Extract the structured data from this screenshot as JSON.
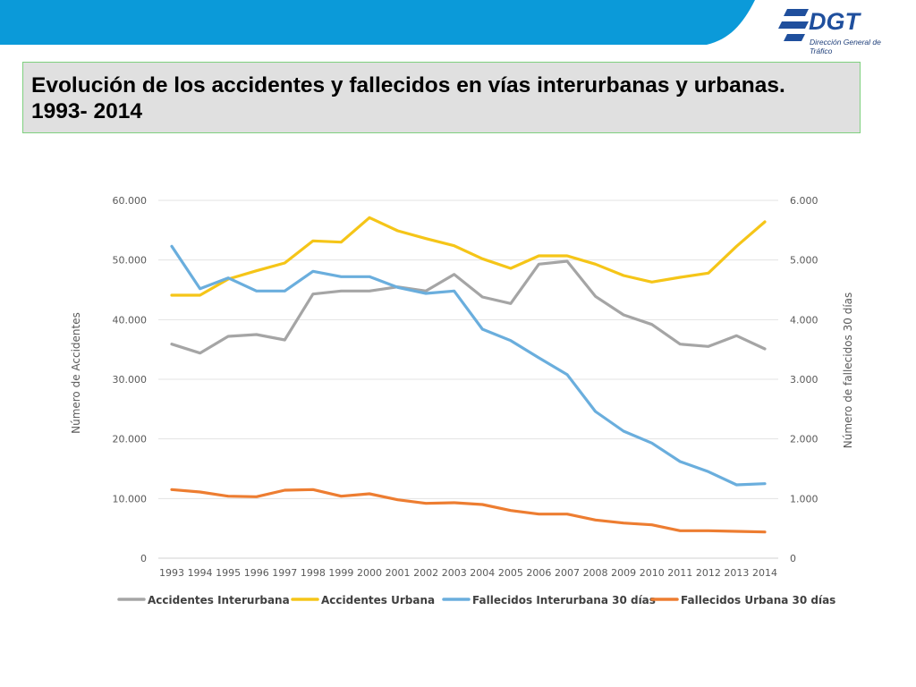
{
  "slide": {
    "title": "Evolución  de los accidentes y fallecidos en vías interurbanas y urbanas. 1993- 2014",
    "logo_text": "DGT",
    "logo_subtitle": "Dirección General de Tráfico",
    "banner_color": "#0b9ad9",
    "logo_color": "#1f4f9d"
  },
  "chart_data": {
    "type": "line",
    "x": [
      "1993",
      "1994",
      "1995",
      "1996",
      "1997",
      "1998",
      "1999",
      "2000",
      "2001",
      "2002",
      "2003",
      "2004",
      "2005",
      "2006",
      "2007",
      "2008",
      "2009",
      "2010",
      "2011",
      "2012",
      "2013",
      "2014"
    ],
    "ylabel": "Número de Accidentes",
    "y2label": "Número de fallecidos 30 días",
    "ylim": [
      0,
      60000
    ],
    "y2lim": [
      0,
      6000
    ],
    "yticks": [
      "0",
      "10.000",
      "20.000",
      "30.000",
      "40.000",
      "50.000",
      "60.000"
    ],
    "y2ticks": [
      "0",
      "1.000",
      "2.000",
      "3.000",
      "4.000",
      "5.000",
      "6.000"
    ],
    "grid": true,
    "legend_position": "bottom",
    "series": [
      {
        "name": "Accidentes Interurbana",
        "axis": "left",
        "color": "#a5a5a5",
        "values": [
          35900,
          34400,
          37200,
          37500,
          36600,
          44300,
          44800,
          44800,
          45500,
          44800,
          47600,
          43800,
          42700,
          49300,
          49800,
          43900,
          40800,
          39200,
          35900,
          35500,
          37300,
          35100
        ]
      },
      {
        "name": "Accidentes Urbana",
        "axis": "left",
        "color": "#f5c518",
        "values": [
          44100,
          44100,
          46800,
          48200,
          49500,
          53200,
          53000,
          57100,
          54900,
          53600,
          52400,
          50200,
          48600,
          50700,
          50700,
          49300,
          47400,
          46300,
          47100,
          47800,
          52300,
          56400
        ]
      },
      {
        "name": "Fallecidos Interurbana 30 días",
        "axis": "right",
        "color": "#6aaedd",
        "values": [
          5230,
          4520,
          4700,
          4480,
          4480,
          4810,
          4720,
          4720,
          4540,
          4440,
          4480,
          3840,
          3650,
          3360,
          3080,
          2460,
          2130,
          1930,
          1620,
          1450,
          1230,
          1250
        ]
      },
      {
        "name": "Fallecidos Urbana 30 días",
        "axis": "right",
        "color": "#ed7d31",
        "values": [
          1150,
          1110,
          1040,
          1030,
          1140,
          1150,
          1040,
          1080,
          980,
          920,
          930,
          900,
          800,
          740,
          740,
          640,
          590,
          560,
          460,
          460,
          450,
          440
        ]
      }
    ]
  }
}
